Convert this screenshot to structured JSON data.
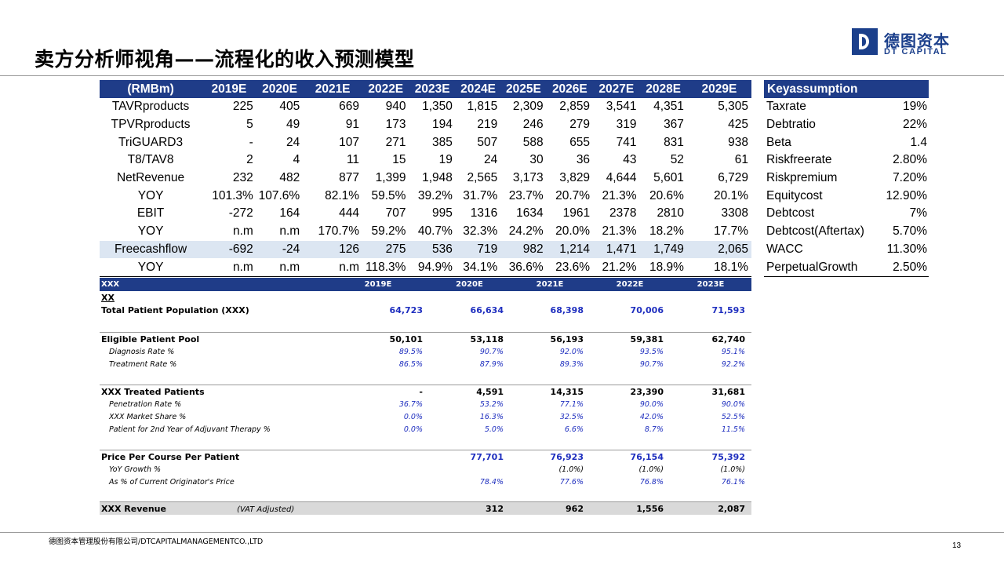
{
  "title": "卖方分析师视角——流程化的收入预测模型",
  "logo": {
    "cn": "德图资本",
    "en": "DT CAPITAL"
  },
  "main_table": {
    "headers": [
      "(RMBm)",
      "2019E",
      "2020E",
      "2021E",
      "2022E",
      "2023E",
      "2024E",
      "2025E",
      "2026E",
      "2027E",
      "2028E",
      "2029E"
    ],
    "rows": [
      {
        "label": "TAVRproducts",
        "values": [
          "225",
          "405",
          "669",
          "940",
          "1,350",
          "1,815",
          "2,309",
          "2,859",
          "3,541",
          "4,351",
          "5,305"
        ]
      },
      {
        "label": "TPVRproducts",
        "values": [
          "5",
          "49",
          "91",
          "173",
          "194",
          "219",
          "246",
          "279",
          "319",
          "367",
          "425"
        ]
      },
      {
        "label": "TriGUARD3",
        "values": [
          "-",
          "24",
          "107",
          "271",
          "385",
          "507",
          "588",
          "655",
          "741",
          "831",
          "938"
        ]
      },
      {
        "label": "T8/TAV8",
        "values": [
          "2",
          "4",
          "11",
          "15",
          "19",
          "24",
          "30",
          "36",
          "43",
          "52",
          "61"
        ]
      },
      {
        "label": "NetRevenue",
        "values": [
          "232",
          "482",
          "877",
          "1,399",
          "1,948",
          "2,565",
          "3,173",
          "3,829",
          "4,644",
          "5,601",
          "6,729"
        ]
      },
      {
        "label": "YOY",
        "values": [
          "101.3%",
          "107.6%",
          "82.1%",
          "59.5%",
          "39.2%",
          "31.7%",
          "23.7%",
          "20.7%",
          "21.3%",
          "20.6%",
          "20.1%"
        ]
      },
      {
        "label": "EBIT",
        "values": [
          "-272",
          "164",
          "444",
          "707",
          "995",
          "1316",
          "1634",
          "1961",
          "2378",
          "2810",
          "3308"
        ]
      },
      {
        "label": "YOY",
        "values": [
          "n.m",
          "n.m",
          "170.7%",
          "59.2%",
          "40.7%",
          "32.3%",
          "24.2%",
          "20.0%",
          "21.3%",
          "18.2%",
          "17.7%"
        ]
      },
      {
        "label": "Freecashflow",
        "values": [
          "-692",
          "-24",
          "126",
          "275",
          "536",
          "719",
          "982",
          "1,214",
          "1,471",
          "1,749",
          "2,065"
        ]
      },
      {
        "label": "YOY",
        "values": [
          "n.m",
          "n.m",
          "n.m",
          "118.3%",
          "94.9%",
          "34.1%",
          "36.6%",
          "23.6%",
          "21.2%",
          "18.9%",
          "18.1%"
        ]
      }
    ]
  },
  "key_assumptions": {
    "header": "Keyassumption",
    "rows": [
      {
        "label": "Taxrate",
        "value": "19%"
      },
      {
        "label": "Debtratio",
        "value": "22%"
      },
      {
        "label": "Beta",
        "value": "1.4"
      },
      {
        "label": "Riskfreerate",
        "value": "2.80%"
      },
      {
        "label": "Riskpremium",
        "value": "7.20%"
      },
      {
        "label": "Equitycost",
        "value": "12.90%"
      },
      {
        "label": "Debtcost",
        "value": "7%"
      },
      {
        "label": "Debtcost(Aftertax)",
        "value": "5.70%"
      },
      {
        "label": "WACC",
        "value": "11.30%"
      },
      {
        "label": "PerpetualGrowth",
        "value": "2.50%"
      }
    ]
  },
  "model": {
    "header_label": "XXX",
    "years": [
      "2019E",
      "2020E",
      "2021E",
      "2022E",
      "2023E"
    ],
    "section_label": "XX",
    "total_patient": {
      "label": "Total Patient Population (XXX)",
      "values": [
        "64,723",
        "66,634",
        "68,398",
        "70,006",
        "71,593"
      ]
    },
    "eligible_pool": {
      "label": "Eligible Patient Pool",
      "values": [
        "50,101",
        "53,118",
        "56,193",
        "59,381",
        "62,740"
      ]
    },
    "diagnosis_rate": {
      "label": "Diagnosis Rate %",
      "values": [
        "89.5%",
        "90.7%",
        "92.0%",
        "93.5%",
        "95.1%"
      ]
    },
    "treatment_rate": {
      "label": "Treatment Rate %",
      "values": [
        "86.5%",
        "87.9%",
        "89.3%",
        "90.7%",
        "92.2%"
      ]
    },
    "treated_patients": {
      "label": "XXX Treated Patients",
      "values": [
        "-",
        "4,591",
        "14,315",
        "23,390",
        "31,681"
      ]
    },
    "penetration_rate": {
      "label": "Penetration Rate %",
      "values": [
        "36.7%",
        "53.2%",
        "77.1%",
        "90.0%",
        "90.0%"
      ]
    },
    "market_share": {
      "label": "XXX Market Share %",
      "values": [
        "0.0%",
        "16.3%",
        "32.5%",
        "42.0%",
        "52.5%"
      ]
    },
    "second_year": {
      "label": "Patient for 2nd Year of Adjuvant Therapy %",
      "values": [
        "0.0%",
        "5.0%",
        "6.6%",
        "8.7%",
        "11.5%"
      ]
    },
    "price": {
      "label": "Price Per Course Per Patient",
      "values": [
        "",
        "77,701",
        "76,923",
        "76,154",
        "75,392"
      ]
    },
    "yoy_growth": {
      "label": "YoY Growth %",
      "values": [
        "",
        "",
        "(1.0%)",
        "(1.0%)",
        "(1.0%)"
      ]
    },
    "pct_originator": {
      "label": "As % of Current Originator's Price",
      "values": [
        "",
        "78.4%",
        "77.6%",
        "76.8%",
        "76.1%"
      ]
    },
    "revenue": {
      "label": "XXX Revenue",
      "note": "(VAT Adjusted)",
      "values": [
        "",
        "312",
        "962",
        "1,556",
        "2,087"
      ]
    }
  },
  "footer": "德图资本管理股份有限公司/DTCAPITALMANAGEMENTCO.,LTD",
  "page_number": "13"
}
